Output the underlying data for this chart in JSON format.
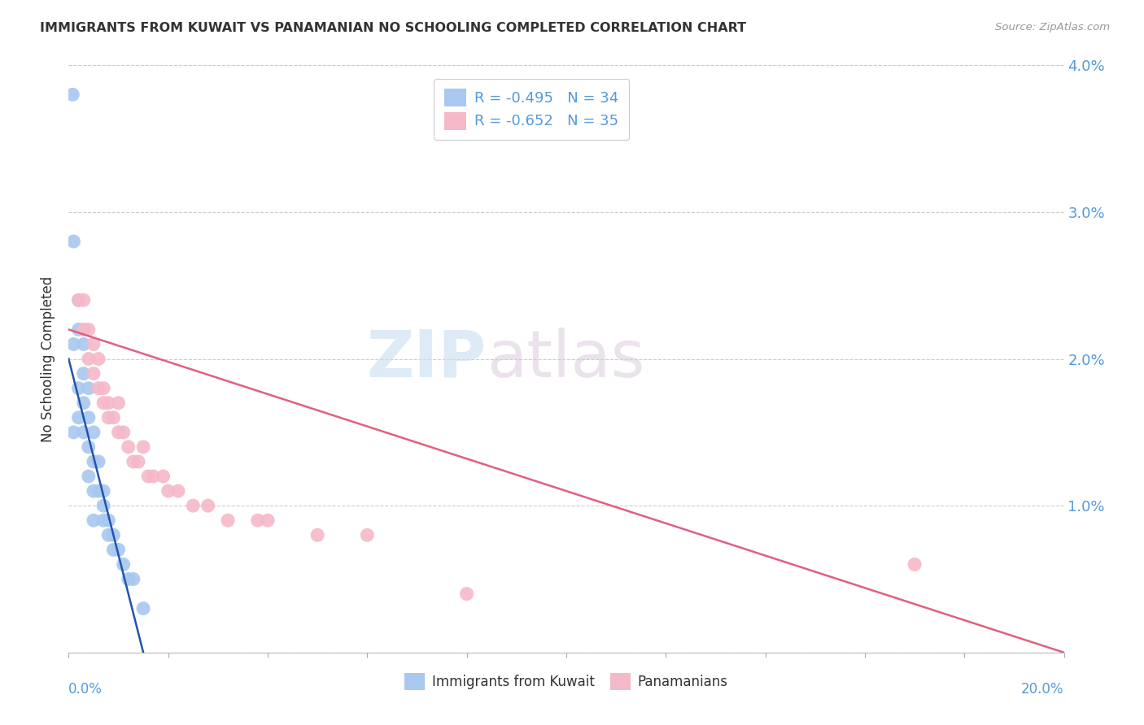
{
  "title": "IMMIGRANTS FROM KUWAIT VS PANAMANIAN NO SCHOOLING COMPLETED CORRELATION CHART",
  "source": "Source: ZipAtlas.com",
  "ylabel": "No Schooling Completed",
  "xmin": 0.0,
  "xmax": 0.2,
  "ymin": 0.0,
  "ymax": 0.04,
  "legend1_label": "R = -0.495   N = 34",
  "legend2_label": "R = -0.652   N = 35",
  "legend_bottom_label1": "Immigrants from Kuwait",
  "legend_bottom_label2": "Panamanians",
  "blue_color": "#A8C8F0",
  "pink_color": "#F5B8C8",
  "blue_line_color": "#2255AA",
  "pink_line_color": "#E06080",
  "label_color": "#5599DD",
  "kuwait_x": [
    0.0008,
    0.001,
    0.001,
    0.001,
    0.002,
    0.002,
    0.002,
    0.002,
    0.003,
    0.003,
    0.003,
    0.003,
    0.004,
    0.004,
    0.004,
    0.004,
    0.005,
    0.005,
    0.005,
    0.005,
    0.006,
    0.006,
    0.007,
    0.007,
    0.007,
    0.008,
    0.008,
    0.009,
    0.009,
    0.01,
    0.011,
    0.012,
    0.013,
    0.015
  ],
  "kuwait_y": [
    0.038,
    0.028,
    0.021,
    0.015,
    0.024,
    0.022,
    0.018,
    0.016,
    0.021,
    0.019,
    0.017,
    0.015,
    0.018,
    0.016,
    0.014,
    0.012,
    0.015,
    0.013,
    0.011,
    0.009,
    0.013,
    0.011,
    0.011,
    0.01,
    0.009,
    0.009,
    0.008,
    0.008,
    0.007,
    0.007,
    0.006,
    0.005,
    0.005,
    0.003
  ],
  "panama_x": [
    0.002,
    0.003,
    0.003,
    0.004,
    0.004,
    0.005,
    0.005,
    0.006,
    0.006,
    0.007,
    0.007,
    0.008,
    0.008,
    0.009,
    0.01,
    0.01,
    0.011,
    0.012,
    0.013,
    0.014,
    0.015,
    0.016,
    0.017,
    0.019,
    0.02,
    0.022,
    0.025,
    0.028,
    0.032,
    0.038,
    0.04,
    0.05,
    0.06,
    0.08,
    0.17
  ],
  "panama_y": [
    0.024,
    0.024,
    0.022,
    0.022,
    0.02,
    0.021,
    0.019,
    0.02,
    0.018,
    0.018,
    0.017,
    0.017,
    0.016,
    0.016,
    0.017,
    0.015,
    0.015,
    0.014,
    0.013,
    0.013,
    0.014,
    0.012,
    0.012,
    0.012,
    0.011,
    0.011,
    0.01,
    0.01,
    0.009,
    0.009,
    0.009,
    0.008,
    0.008,
    0.004,
    0.006
  ],
  "kuwait_trendline_x": [
    0.0,
    0.015
  ],
  "kuwait_trendline_y": [
    0.02,
    0.0
  ],
  "panama_trendline_x": [
    0.0,
    0.2
  ],
  "panama_trendline_y": [
    0.022,
    0.0
  ],
  "watermark_zip": "ZIP",
  "watermark_atlas": "atlas",
  "background_color": "#FFFFFF",
  "grid_color": "#CCCCCC"
}
